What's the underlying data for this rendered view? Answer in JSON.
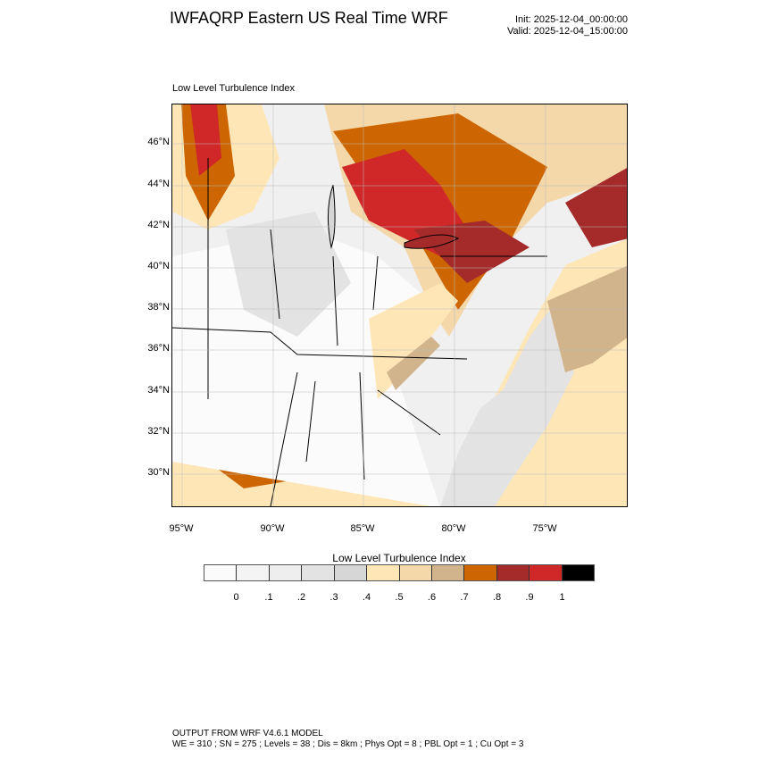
{
  "title": "IWFAQRP Eastern US Real Time WRF",
  "init": "Init: 2025-12-04_00:00:00",
  "valid": "Valid: 2025-12-04_15:00:00",
  "subtitle": "Low Level Turbulence Index",
  "lat_labels": [
    "46°N",
    "44°N",
    "42°N",
    "40°N",
    "38°N",
    "36°N",
    "34°N",
    "32°N",
    "30°N"
  ],
  "lon_labels": [
    "95°W",
    "90°W",
    "85°W",
    "80°W",
    "75°W"
  ],
  "colorbar": {
    "title": "Low Level Turbulence Index",
    "labels": [
      "0",
      ".1",
      ".2",
      ".3",
      ".4",
      ".5",
      ".6",
      ".7",
      ".8",
      ".9",
      "1"
    ],
    "colors": [
      "#fbfbfb",
      "#f4f4f4",
      "#eeeeee",
      "#e3e3e3",
      "#d6d6d6",
      "#ffe6b6",
      "#f4d8aa",
      "#d2b48c",
      "#cd6600",
      "#a52a2a",
      "#d02828",
      "#000000"
    ]
  },
  "footer": {
    "line1": "OUTPUT FROM WRF V4.6.1 MODEL",
    "line2": "WE = 310 ; SN = 275 ; Levels = 38 ; Dis = 8km ; Phys Opt = 8 ; PBL Opt = 1 ; Cu Opt = 3"
  }
}
